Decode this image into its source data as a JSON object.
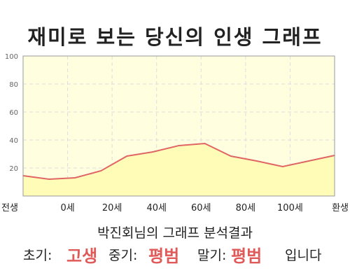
{
  "title": "재미로 보는 당신의 인생 그래프",
  "analysis_caption": "박진회님의 그래프 분석결과",
  "result": {
    "early_label": "초기:",
    "early_value": "고생",
    "middle_label": "중기:",
    "middle_value": "평범",
    "late_label": "말기:",
    "late_value": "평범",
    "suffix": "입니다"
  },
  "colors": {
    "plot_background": "#ffffe0",
    "area_fill": "#fffcb4",
    "line": "#e06565",
    "verdict": "#e05a5a"
  },
  "chart_data": {
    "type": "area",
    "title": "",
    "xlabel": "",
    "ylabel": "",
    "x_tick_labels": [
      "전생",
      "0세",
      "20세",
      "40세",
      "60세",
      "80세",
      "100세",
      "환생"
    ],
    "y_tick_labels": [
      "20",
      "40",
      "60",
      "80",
      "100"
    ],
    "ylim": [
      0,
      100
    ],
    "grid": true,
    "series": [
      {
        "values": [
          14.5,
          12,
          13,
          18,
          28.5,
          31.5,
          36,
          37.5,
          28.5,
          25,
          21,
          25,
          29
        ]
      }
    ]
  }
}
